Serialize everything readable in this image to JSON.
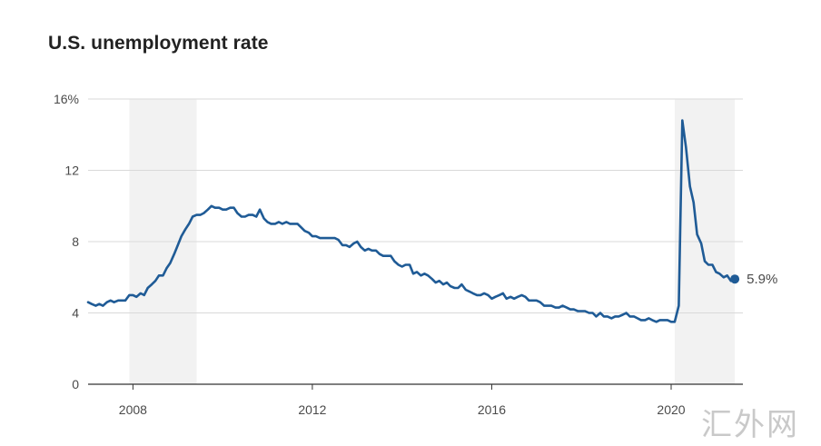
{
  "chart_data": {
    "type": "line",
    "title": "U.S. unemployment rate",
    "xlabel": "",
    "ylabel": "",
    "ylim": [
      0,
      16
    ],
    "xlim": [
      2007.0,
      2021.6
    ],
    "y_ticks": [
      0,
      4,
      8,
      12,
      16
    ],
    "y_tick_labels": [
      "0",
      "4",
      "8",
      "12",
      "16%"
    ],
    "x_ticks": [
      2008,
      2012,
      2016,
      2020
    ],
    "x_tick_labels": [
      "2008",
      "2012",
      "2016",
      "2020"
    ],
    "grid": "horizontal",
    "recession_shading": [
      [
        2007.92,
        2009.42
      ],
      [
        2020.08,
        2021.42
      ]
    ],
    "line_color": "#1f5b96",
    "shade_color": "#f2f2f2",
    "end_label": "5.9%",
    "series": [
      {
        "values": [
          [
            2007.0,
            4.6
          ],
          [
            2007.08,
            4.5
          ],
          [
            2007.17,
            4.4
          ],
          [
            2007.25,
            4.5
          ],
          [
            2007.33,
            4.4
          ],
          [
            2007.42,
            4.6
          ],
          [
            2007.5,
            4.7
          ],
          [
            2007.58,
            4.6
          ],
          [
            2007.67,
            4.7
          ],
          [
            2007.75,
            4.7
          ],
          [
            2007.83,
            4.7
          ],
          [
            2007.92,
            5.0
          ],
          [
            2008.0,
            5.0
          ],
          [
            2008.08,
            4.9
          ],
          [
            2008.17,
            5.1
          ],
          [
            2008.25,
            5.0
          ],
          [
            2008.33,
            5.4
          ],
          [
            2008.42,
            5.6
          ],
          [
            2008.5,
            5.8
          ],
          [
            2008.58,
            6.1
          ],
          [
            2008.67,
            6.1
          ],
          [
            2008.75,
            6.5
          ],
          [
            2008.83,
            6.8
          ],
          [
            2008.92,
            7.3
          ],
          [
            2009.0,
            7.8
          ],
          [
            2009.08,
            8.3
          ],
          [
            2009.17,
            8.7
          ],
          [
            2009.25,
            9.0
          ],
          [
            2009.33,
            9.4
          ],
          [
            2009.42,
            9.5
          ],
          [
            2009.5,
            9.5
          ],
          [
            2009.58,
            9.6
          ],
          [
            2009.67,
            9.8
          ],
          [
            2009.75,
            10.0
          ],
          [
            2009.83,
            9.9
          ],
          [
            2009.92,
            9.9
          ],
          [
            2010.0,
            9.8
          ],
          [
            2010.08,
            9.8
          ],
          [
            2010.17,
            9.9
          ],
          [
            2010.25,
            9.9
          ],
          [
            2010.33,
            9.6
          ],
          [
            2010.42,
            9.4
          ],
          [
            2010.5,
            9.4
          ],
          [
            2010.58,
            9.5
          ],
          [
            2010.67,
            9.5
          ],
          [
            2010.75,
            9.4
          ],
          [
            2010.83,
            9.8
          ],
          [
            2010.92,
            9.3
          ],
          [
            2011.0,
            9.1
          ],
          [
            2011.08,
            9.0
          ],
          [
            2011.17,
            9.0
          ],
          [
            2011.25,
            9.1
          ],
          [
            2011.33,
            9.0
          ],
          [
            2011.42,
            9.1
          ],
          [
            2011.5,
            9.0
          ],
          [
            2011.58,
            9.0
          ],
          [
            2011.67,
            9.0
          ],
          [
            2011.75,
            8.8
          ],
          [
            2011.83,
            8.6
          ],
          [
            2011.92,
            8.5
          ],
          [
            2012.0,
            8.3
          ],
          [
            2012.08,
            8.3
          ],
          [
            2012.17,
            8.2
          ],
          [
            2012.25,
            8.2
          ],
          [
            2012.33,
            8.2
          ],
          [
            2012.42,
            8.2
          ],
          [
            2012.5,
            8.2
          ],
          [
            2012.58,
            8.1
          ],
          [
            2012.67,
            7.8
          ],
          [
            2012.75,
            7.8
          ],
          [
            2012.83,
            7.7
          ],
          [
            2012.92,
            7.9
          ],
          [
            2013.0,
            8.0
          ],
          [
            2013.08,
            7.7
          ],
          [
            2013.17,
            7.5
          ],
          [
            2013.25,
            7.6
          ],
          [
            2013.33,
            7.5
          ],
          [
            2013.42,
            7.5
          ],
          [
            2013.5,
            7.3
          ],
          [
            2013.58,
            7.2
          ],
          [
            2013.67,
            7.2
          ],
          [
            2013.75,
            7.2
          ],
          [
            2013.83,
            6.9
          ],
          [
            2013.92,
            6.7
          ],
          [
            2014.0,
            6.6
          ],
          [
            2014.08,
            6.7
          ],
          [
            2014.17,
            6.7
          ],
          [
            2014.25,
            6.2
          ],
          [
            2014.33,
            6.3
          ],
          [
            2014.42,
            6.1
          ],
          [
            2014.5,
            6.2
          ],
          [
            2014.58,
            6.1
          ],
          [
            2014.67,
            5.9
          ],
          [
            2014.75,
            5.7
          ],
          [
            2014.83,
            5.8
          ],
          [
            2014.92,
            5.6
          ],
          [
            2015.0,
            5.7
          ],
          [
            2015.08,
            5.5
          ],
          [
            2015.17,
            5.4
          ],
          [
            2015.25,
            5.4
          ],
          [
            2015.33,
            5.6
          ],
          [
            2015.42,
            5.3
          ],
          [
            2015.5,
            5.2
          ],
          [
            2015.58,
            5.1
          ],
          [
            2015.67,
            5.0
          ],
          [
            2015.75,
            5.0
          ],
          [
            2015.83,
            5.1
          ],
          [
            2015.92,
            5.0
          ],
          [
            2016.0,
            4.8
          ],
          [
            2016.08,
            4.9
          ],
          [
            2016.17,
            5.0
          ],
          [
            2016.25,
            5.1
          ],
          [
            2016.33,
            4.8
          ],
          [
            2016.42,
            4.9
          ],
          [
            2016.5,
            4.8
          ],
          [
            2016.58,
            4.9
          ],
          [
            2016.67,
            5.0
          ],
          [
            2016.75,
            4.9
          ],
          [
            2016.83,
            4.7
          ],
          [
            2016.92,
            4.7
          ],
          [
            2017.0,
            4.7
          ],
          [
            2017.08,
            4.6
          ],
          [
            2017.17,
            4.4
          ],
          [
            2017.25,
            4.4
          ],
          [
            2017.33,
            4.4
          ],
          [
            2017.42,
            4.3
          ],
          [
            2017.5,
            4.3
          ],
          [
            2017.58,
            4.4
          ],
          [
            2017.67,
            4.3
          ],
          [
            2017.75,
            4.2
          ],
          [
            2017.83,
            4.2
          ],
          [
            2017.92,
            4.1
          ],
          [
            2018.0,
            4.1
          ],
          [
            2018.08,
            4.1
          ],
          [
            2018.17,
            4.0
          ],
          [
            2018.25,
            4.0
          ],
          [
            2018.33,
            3.8
          ],
          [
            2018.42,
            4.0
          ],
          [
            2018.5,
            3.8
          ],
          [
            2018.58,
            3.8
          ],
          [
            2018.67,
            3.7
          ],
          [
            2018.75,
            3.8
          ],
          [
            2018.83,
            3.8
          ],
          [
            2018.92,
            3.9
          ],
          [
            2019.0,
            4.0
          ],
          [
            2019.08,
            3.8
          ],
          [
            2019.17,
            3.8
          ],
          [
            2019.25,
            3.7
          ],
          [
            2019.33,
            3.6
          ],
          [
            2019.42,
            3.6
          ],
          [
            2019.5,
            3.7
          ],
          [
            2019.58,
            3.6
          ],
          [
            2019.67,
            3.5
          ],
          [
            2019.75,
            3.6
          ],
          [
            2019.83,
            3.6
          ],
          [
            2019.92,
            3.6
          ],
          [
            2020.0,
            3.5
          ],
          [
            2020.08,
            3.5
          ],
          [
            2020.17,
            4.4
          ],
          [
            2020.25,
            14.8
          ],
          [
            2020.33,
            13.3
          ],
          [
            2020.42,
            11.1
          ],
          [
            2020.5,
            10.2
          ],
          [
            2020.58,
            8.4
          ],
          [
            2020.67,
            7.9
          ],
          [
            2020.75,
            6.9
          ],
          [
            2020.83,
            6.7
          ],
          [
            2020.92,
            6.7
          ],
          [
            2021.0,
            6.3
          ],
          [
            2021.08,
            6.2
          ],
          [
            2021.17,
            6.0
          ],
          [
            2021.25,
            6.1
          ],
          [
            2021.33,
            5.8
          ],
          [
            2021.42,
            5.9
          ]
        ]
      }
    ]
  },
  "watermark": "汇外网"
}
